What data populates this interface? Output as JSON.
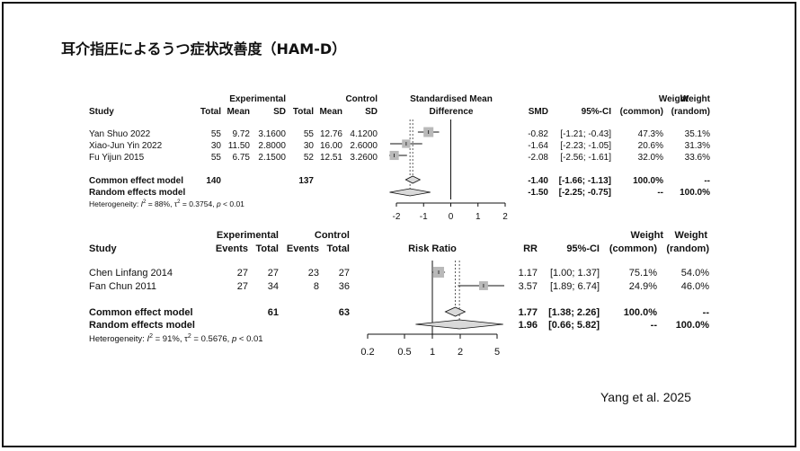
{
  "slide": {
    "title": "耳介指圧によるうつ症状改善度（HAM-D）",
    "citation": "Yang et al. 2025"
  },
  "colors": {
    "box": "#b9b9b9",
    "text": "#111111",
    "diamond_fill": "#d9d9d9"
  },
  "chart_data": [
    {
      "type": "forest",
      "header": {
        "group1": "Experimental",
        "group2": "Control",
        "study": "Study",
        "total": "Total",
        "mean": "Mean",
        "sd": "SD",
        "plot_title_1": "Standardised Mean",
        "plot_title_2": "Difference",
        "effect": "SMD",
        "ci": "95%-CI",
        "w_common_1": "Weight",
        "w_common_2": "(common)",
        "w_random_1": "Weight",
        "w_random_2": "(random)"
      },
      "studies": [
        {
          "name": "Yan Shuo 2022",
          "e_total": "55",
          "e_mean": "9.72",
          "e_sd": "3.1600",
          "c_total": "55",
          "c_mean": "12.76",
          "c_sd": "4.1200",
          "effect": -0.82,
          "lower": -1.21,
          "upper": -0.43,
          "effect_text": "-0.82",
          "ci_text": "[-1.21; -0.43]",
          "w_common": "47.3%",
          "w_random": "35.1%"
        },
        {
          "name": "Xiao-Jun Yin 2022",
          "e_total": "30",
          "e_mean": "11.50",
          "e_sd": "2.8000",
          "c_total": "30",
          "c_mean": "16.00",
          "c_sd": "2.6000",
          "effect": -1.64,
          "lower": -2.23,
          "upper": -1.05,
          "effect_text": "-1.64",
          "ci_text": "[-2.23; -1.05]",
          "w_common": "20.6%",
          "w_random": "31.3%"
        },
        {
          "name": "Fu Yijun 2015",
          "e_total": "55",
          "e_mean": "6.75",
          "e_sd": "2.1500",
          "c_total": "52",
          "c_mean": "12.51",
          "c_sd": "3.2600",
          "effect": -2.08,
          "lower": -2.56,
          "upper": -1.61,
          "effect_text": "-2.08",
          "ci_text": "[-2.56; -1.61]",
          "w_common": "32.0%",
          "w_random": "33.6%"
        }
      ],
      "pooled": [
        {
          "label": "Common effect model",
          "e_total": "140",
          "c_total": "137",
          "effect": -1.4,
          "lower": -1.66,
          "upper": -1.13,
          "effect_text": "-1.40",
          "ci_text": "[-1.66; -1.13]",
          "w_common": "100.0%",
          "w_random": "--"
        },
        {
          "label": "Random effects model",
          "e_total": "",
          "c_total": "",
          "effect": -1.5,
          "lower": -2.25,
          "upper": -0.75,
          "effect_text": "-1.50",
          "ci_text": "[-2.25; -0.75]",
          "w_common": "--",
          "w_random": "100.0%"
        }
      ],
      "heterogeneity": {
        "prefix": "Heterogeneity: ",
        "i2_sym": "I",
        "i2_sup": "2",
        "i2_val": " = 88%, ",
        "tau_sym": "τ",
        "tau_sup": "2",
        "tau_val": " = 0.3754, ",
        "p_sym": "p",
        "p_val": " < 0.01"
      },
      "x_axis": {
        "scale": "linear",
        "ticks": [
          -2,
          -1,
          0,
          1,
          2
        ],
        "tick_labels": [
          "-2",
          "-1",
          "0",
          "1",
          "2"
        ],
        "null_value": 0
      }
    },
    {
      "type": "forest",
      "header": {
        "group1": "Experimental",
        "group2": "Control",
        "study": "Study",
        "events": "Events",
        "total": "Total",
        "plot_title": "Risk Ratio",
        "effect": "RR",
        "ci": "95%-CI",
        "w_common_1": "Weight",
        "w_common_2": "(common)",
        "w_random_1": "Weight",
        "w_random_2": "(random)"
      },
      "studies": [
        {
          "name": "Chen Linfang 2014",
          "e_events": "27",
          "e_total": "27",
          "c_events": "23",
          "c_total": "27",
          "effect": 1.17,
          "lower": 1.0,
          "upper": 1.37,
          "effect_text": "1.17",
          "ci_text": "[1.00; 1.37]",
          "w_common": "75.1%",
          "w_random": "54.0%"
        },
        {
          "name": "Fan Chun 2011",
          "e_events": "27",
          "e_total": "34",
          "c_events": "8",
          "c_total": "36",
          "effect": 3.57,
          "lower": 1.89,
          "upper": 6.74,
          "effect_text": "3.57",
          "ci_text": "[1.89; 6.74]",
          "w_common": "24.9%",
          "w_random": "46.0%"
        }
      ],
      "pooled": [
        {
          "label": "Common effect model",
          "e_total": "61",
          "c_total": "63",
          "effect": 1.77,
          "lower": 1.38,
          "upper": 2.26,
          "effect_text": "1.77",
          "ci_text": "[1.38; 2.26]",
          "w_common": "100.0%",
          "w_random": "--"
        },
        {
          "label": "Random effects model",
          "e_total": "",
          "c_total": "",
          "effect": 1.96,
          "lower": 0.66,
          "upper": 5.82,
          "effect_text": "1.96",
          "ci_text": "[0.66; 5.82]",
          "w_common": "--",
          "w_random": "100.0%"
        }
      ],
      "heterogeneity": {
        "prefix": "Heterogeneity: ",
        "i2_sym": "I",
        "i2_sup": "2",
        "i2_val": " = 91%, ",
        "tau_sym": "τ",
        "tau_sup": "2",
        "tau_val": " = 0.5676, ",
        "p_sym": "p",
        "p_val": " < 0.01"
      },
      "x_axis": {
        "scale": "log",
        "ticks": [
          0.2,
          0.5,
          1,
          2,
          5
        ],
        "tick_labels": [
          "0.2",
          "0.5",
          "1",
          "2",
          "5"
        ],
        "null_value": 1
      }
    }
  ]
}
